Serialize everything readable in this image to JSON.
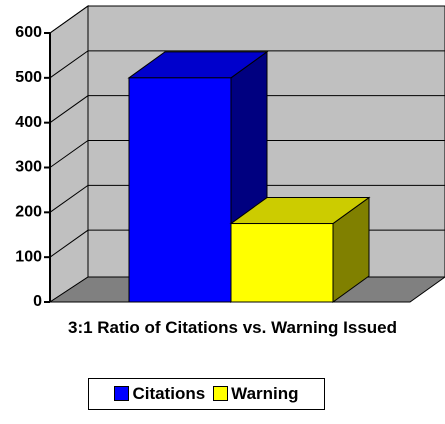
{
  "chart_data": {
    "type": "bar3d",
    "x_label": "3:1 Ratio of Citations vs. Warning Issued",
    "categories": [
      null
    ],
    "series": [
      {
        "name": "Citations",
        "color": "#0000ff",
        "values": [
          500
        ]
      },
      {
        "name": "Warning",
        "color": "#ffff00",
        "values": [
          175
        ]
      }
    ],
    "ylim": [
      0,
      600
    ],
    "yticks": [
      0,
      100,
      200,
      300,
      400,
      500,
      600
    ],
    "grid": true,
    "legend": "bottom"
  }
}
